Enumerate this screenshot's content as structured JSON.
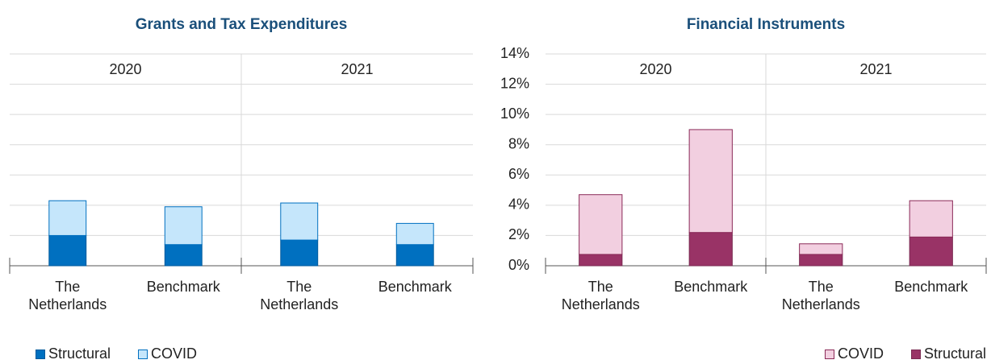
{
  "chart_data": [
    {
      "type": "bar",
      "stacked": true,
      "title": "Grants and Tax Expenditures",
      "groups": [
        "2020",
        "2021"
      ],
      "categories": [
        "The Netherlands",
        "Benchmark",
        "The Netherlands",
        "Benchmark"
      ],
      "series": [
        {
          "name": "Structural",
          "color": "#0070c0",
          "edge": "#005a9c",
          "values": [
            2.0,
            1.4,
            1.7,
            1.4
          ]
        },
        {
          "name": "COVID",
          "color": "#c5e6fb",
          "edge": "#0070c0",
          "values": [
            2.3,
            2.5,
            2.45,
            1.4
          ]
        }
      ],
      "ylim": [
        0,
        14
      ],
      "yticks": [
        0,
        2,
        4,
        6,
        8,
        10,
        12,
        14
      ],
      "ytick_labels": false,
      "grid": true,
      "legend": "bottom-left",
      "legend_reverse": false
    },
    {
      "type": "bar",
      "stacked": true,
      "title": "Financial Instruments",
      "groups": [
        "2020",
        "2021"
      ],
      "categories": [
        "The Netherlands",
        "Benchmark",
        "The Netherlands",
        "Benchmark"
      ],
      "series": [
        {
          "name": "Structural",
          "color": "#993366",
          "edge": "#7a2a52",
          "values": [
            0.75,
            2.2,
            0.75,
            1.9
          ]
        },
        {
          "name": "COVID",
          "color": "#f2cfe0",
          "edge": "#8b2a58",
          "values": [
            3.95,
            6.8,
            0.7,
            2.4
          ]
        }
      ],
      "ylim": [
        0,
        14
      ],
      "yticks": [
        {
          "value": 0,
          "label": "0%"
        },
        {
          "value": 2,
          "label": "2%"
        },
        {
          "value": 4,
          "label": "4%"
        },
        {
          "value": 6,
          "label": "6%"
        },
        {
          "value": 8,
          "label": "8%"
        },
        {
          "value": 10,
          "label": "10%"
        },
        {
          "value": 12,
          "label": "12%"
        },
        {
          "value": 14,
          "label": "14%"
        }
      ],
      "ytick_labels": true,
      "grid": true,
      "legend": "bottom-right",
      "legend_reverse": true
    }
  ]
}
